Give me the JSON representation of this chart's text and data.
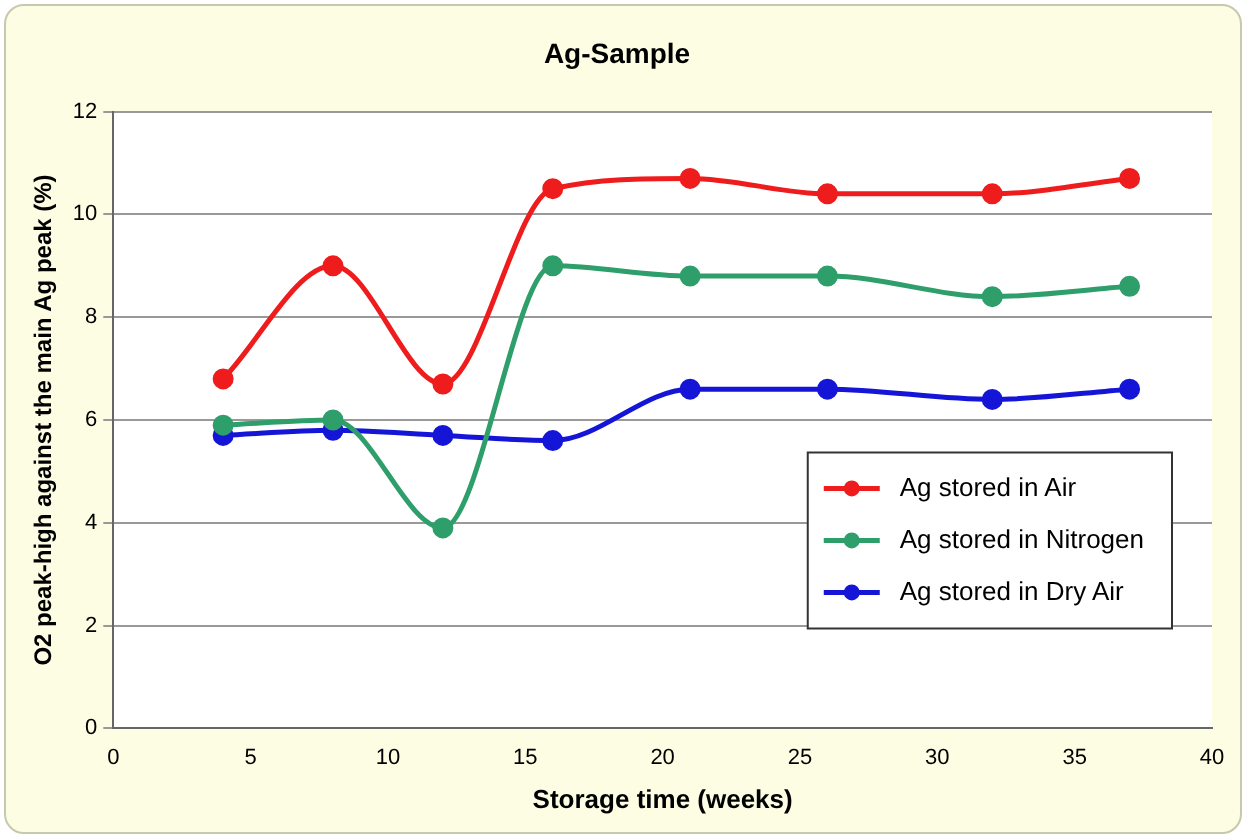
{
  "chart_data": {
    "type": "line",
    "title": "Ag-Sample",
    "xlabel": "Storage time (weeks)",
    "ylabel": "O2 peak-high against the main Ag peak (%)",
    "x": [
      4,
      8,
      12,
      16,
      21,
      26,
      32,
      37
    ],
    "series": [
      {
        "name": "Ag stored in Air",
        "color": "#ee1c1c",
        "values": [
          6.8,
          9.0,
          6.7,
          10.5,
          10.7,
          10.4,
          10.4,
          10.7
        ]
      },
      {
        "name": "Ag stored in Nitrogen",
        "color": "#2e9e6a",
        "values": [
          5.9,
          6.0,
          3.9,
          9.0,
          8.8,
          8.8,
          8.4,
          8.6
        ]
      },
      {
        "name": "Ag stored in Dry Air",
        "color": "#1515d8",
        "values": [
          5.7,
          5.8,
          5.7,
          5.6,
          6.6,
          6.6,
          6.4,
          6.6
        ]
      }
    ],
    "xlim": [
      0,
      40
    ],
    "xticks": [
      0,
      5,
      10,
      15,
      20,
      25,
      30,
      35,
      40
    ],
    "ylim": [
      0,
      12
    ],
    "yticks": [
      0,
      2,
      4,
      6,
      8,
      10,
      12
    ],
    "grid": "y",
    "legend": "bottom right",
    "marker": "circle",
    "line_style": "solid"
  }
}
